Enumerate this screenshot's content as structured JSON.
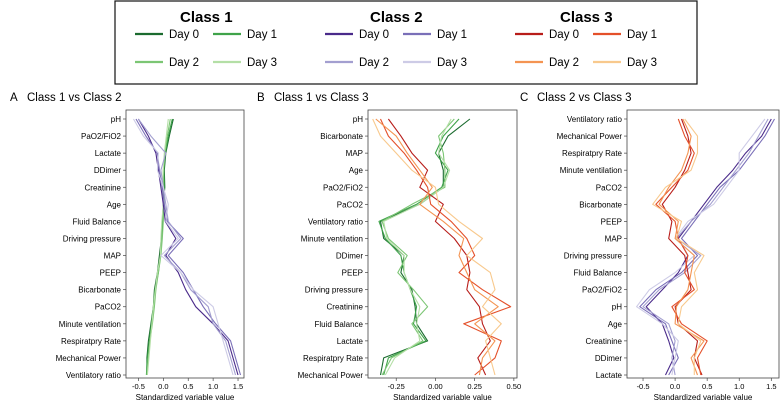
{
  "legend": {
    "groups": [
      {
        "title": "Class 1",
        "items": [
          {
            "label": "Day 0",
            "color": "#1b6b2f"
          },
          {
            "label": "Day 1",
            "color": "#3fa34a"
          },
          {
            "label": "Day 2",
            "color": "#7cc674"
          },
          {
            "label": "Day 3",
            "color": "#b4dfa6"
          }
        ]
      },
      {
        "title": "Class 2",
        "items": [
          {
            "label": "Day 0",
            "color": "#4a2a8a"
          },
          {
            "label": "Day 1",
            "color": "#7a6fb8"
          },
          {
            "label": "Day 2",
            "color": "#a39fd0"
          },
          {
            "label": "Day 3",
            "color": "#cdcbe6"
          }
        ]
      },
      {
        "title": "Class 3",
        "items": [
          {
            "label": "Day 0",
            "color": "#b81d1a"
          },
          {
            "label": "Day 1",
            "color": "#e4502a"
          },
          {
            "label": "Day 2",
            "color": "#f49452"
          },
          {
            "label": "Day 3",
            "color": "#f8c98d"
          }
        ]
      }
    ]
  },
  "chart_data": [
    {
      "type": "line",
      "panel": "A",
      "title": "Class 1 vs Class 2",
      "xlabel": "Standardized variable value",
      "xlim": [
        -0.75,
        1.62
      ],
      "xticks": [
        "-0.5",
        "0.0",
        "0.5",
        "1.0",
        "1.5"
      ],
      "xtick_values": [
        -0.5,
        0.0,
        0.5,
        1.0,
        1.5
      ],
      "categories": [
        "pH",
        "PaO2/FiO2",
        "Lactate",
        "DDimer",
        "Creatinine",
        "Age",
        "Fluid Balance",
        "Driving pressure",
        "MAP",
        "PEEP",
        "Bicarbonate",
        "PaCO2",
        "Minute ventilation",
        "Respiratpry Rate",
        "Mechanical Power",
        "Ventilatory ratio"
      ],
      "series": [
        {
          "name": "Class 1 Day 0",
          "color": "#1b6b2f",
          "values": [
            0.2,
            0.12,
            0.05,
            0.02,
            0.03,
            0.0,
            -0.02,
            -0.04,
            -0.08,
            -0.12,
            -0.18,
            -0.2,
            -0.25,
            -0.3,
            -0.33,
            -0.33
          ]
        },
        {
          "name": "Class 1 Day 1",
          "color": "#3fa34a",
          "values": [
            0.18,
            0.1,
            0.04,
            0.01,
            0.02,
            0.01,
            -0.01,
            -0.03,
            -0.06,
            -0.1,
            -0.17,
            -0.2,
            -0.24,
            -0.28,
            -0.32,
            -0.34
          ]
        },
        {
          "name": "Class 1 Day 2",
          "color": "#7cc674",
          "values": [
            0.14,
            0.08,
            0.03,
            0.0,
            0.0,
            0.02,
            0.0,
            -0.02,
            -0.05,
            -0.1,
            -0.15,
            -0.18,
            -0.22,
            -0.27,
            -0.3,
            -0.33
          ]
        },
        {
          "name": "Class 1 Day 3",
          "color": "#b4dfa6",
          "values": [
            0.1,
            0.06,
            0.02,
            0.0,
            -0.02,
            0.0,
            -0.03,
            -0.05,
            -0.06,
            -0.12,
            -0.16,
            -0.2,
            -0.23,
            -0.26,
            -0.29,
            -0.32
          ]
        },
        {
          "name": "Class 2 Day 0",
          "color": "#4a2a8a",
          "values": [
            -0.5,
            -0.3,
            -0.15,
            -0.1,
            -0.05,
            0.0,
            0.04,
            0.25,
            0.05,
            0.3,
            0.45,
            0.65,
            1.0,
            1.3,
            1.4,
            1.5
          ]
        },
        {
          "name": "Class 2 Day 1",
          "color": "#7a6fb8",
          "values": [
            -0.55,
            -0.35,
            -0.12,
            -0.08,
            -0.02,
            0.02,
            0.08,
            0.4,
            0.1,
            0.4,
            0.6,
            0.8,
            1.05,
            1.35,
            1.45,
            1.55
          ]
        },
        {
          "name": "Class 2 Day 2",
          "color": "#a39fd0",
          "values": [
            -0.5,
            -0.25,
            0.05,
            -0.05,
            0.0,
            0.05,
            0.1,
            0.35,
            0.02,
            0.35,
            0.55,
            0.9,
            1.0,
            1.25,
            1.35,
            1.45
          ]
        },
        {
          "name": "Class 2 Day 3",
          "color": "#cdcbe6",
          "values": [
            -0.6,
            -0.4,
            -0.1,
            -0.12,
            0.0,
            0.1,
            0.05,
            0.3,
            -0.05,
            0.35,
            0.6,
            1.0,
            1.1,
            1.2,
            1.3,
            1.4
          ]
        }
      ]
    },
    {
      "type": "line",
      "panel": "B",
      "title": "Class 1 vs Class 3",
      "xlabel": "Standardized variable value",
      "xlim": [
        -0.43,
        0.52
      ],
      "xticks": [
        "-0.25",
        "0.00",
        "0.25",
        "0.50"
      ],
      "xtick_values": [
        -0.25,
        0.0,
        0.25,
        0.5
      ],
      "categories": [
        "pH",
        "Bicarbonate",
        "MAP",
        "Age",
        "PaO2/FiO2",
        "PaCO2",
        "Ventilatory ratio",
        "Minute ventilation",
        "DDimer",
        "PEEP",
        "Driving pressure",
        "Creatinine",
        "Fluid Balance",
        "Lactate",
        "Respiratpry Rate",
        "Mechanical Power"
      ],
      "series": [
        {
          "name": "Class 1 Day 0",
          "color": "#1b6b2f",
          "values": [
            0.22,
            0.08,
            0.02,
            0.05,
            0.05,
            -0.1,
            -0.35,
            -0.33,
            -0.2,
            -0.22,
            -0.15,
            -0.13,
            -0.12,
            -0.05,
            -0.33,
            -0.35
          ]
        },
        {
          "name": "Class 1 Day 1",
          "color": "#3fa34a",
          "values": [
            0.15,
            0.05,
            0.0,
            0.08,
            0.04,
            -0.12,
            -0.36,
            -0.32,
            -0.22,
            -0.2,
            -0.16,
            -0.12,
            -0.14,
            -0.06,
            -0.3,
            -0.33
          ]
        },
        {
          "name": "Class 1 Day 2",
          "color": "#7cc674",
          "values": [
            0.12,
            0.02,
            0.05,
            0.06,
            0.06,
            -0.15,
            -0.34,
            -0.3,
            -0.18,
            -0.24,
            -0.14,
            -0.05,
            -0.15,
            -0.08,
            -0.28,
            -0.34
          ]
        },
        {
          "name": "Class 1 Day 3",
          "color": "#b4dfa6",
          "values": [
            0.1,
            0.04,
            0.02,
            0.09,
            0.05,
            -0.1,
            -0.33,
            -0.31,
            -0.2,
            -0.2,
            -0.16,
            -0.1,
            -0.12,
            -0.1,
            -0.26,
            -0.32
          ]
        },
        {
          "name": "Class 3 Day 0",
          "color": "#b81d1a",
          "values": [
            -0.3,
            -0.22,
            -0.15,
            -0.05,
            -0.1,
            0.05,
            0.0,
            0.12,
            0.2,
            0.22,
            0.2,
            0.28,
            0.3,
            0.35,
            0.27,
            0.32
          ]
        },
        {
          "name": "Class 3 Day 1",
          "color": "#e4502a",
          "values": [
            -0.35,
            -0.3,
            -0.2,
            -0.12,
            -0.05,
            -0.03,
            0.1,
            0.2,
            0.25,
            0.15,
            0.3,
            0.48,
            0.18,
            0.42,
            0.38,
            0.25
          ]
        },
        {
          "name": "Class 3 Day 2",
          "color": "#f49452",
          "values": [
            -0.38,
            -0.25,
            -0.18,
            -0.1,
            -0.02,
            -0.1,
            0.05,
            0.18,
            0.15,
            0.2,
            0.25,
            0.4,
            0.25,
            0.38,
            0.3,
            0.28
          ]
        },
        {
          "name": "Class 3 Day 3",
          "color": "#f8c98d",
          "values": [
            -0.4,
            -0.35,
            -0.25,
            -0.15,
            0.0,
            0.02,
            0.15,
            0.3,
            0.2,
            0.35,
            0.38,
            0.3,
            0.42,
            0.32,
            0.35,
            0.38
          ]
        }
      ]
    },
    {
      "type": "line",
      "panel": "C",
      "title": "Class 2 vs Class 3",
      "xlabel": "Standardized variable value",
      "xlim": [
        -0.75,
        1.62
      ],
      "xticks": [
        "-0.5",
        "0.0",
        "0.5",
        "1.0",
        "1.5"
      ],
      "xtick_values": [
        -0.5,
        0.0,
        0.5,
        1.0,
        1.5
      ],
      "categories": [
        "Ventilatory ratio",
        "Mechanical Power",
        "Respiratpry Rate",
        "Minute ventilation",
        "PaCO2",
        "Bicarbonate",
        "PEEP",
        "MAP",
        "Driving pressure",
        "Fluid Balance",
        "PaO2/FiO2",
        "pH",
        "Age",
        "Creatinine",
        "DDimer",
        "Lactate"
      ],
      "series": [
        {
          "name": "Class 2 Day 0",
          "color": "#4a2a8a",
          "values": [
            1.5,
            1.35,
            1.1,
            0.9,
            0.65,
            0.45,
            0.25,
            0.05,
            0.2,
            0.05,
            -0.2,
            -0.45,
            -0.2,
            -0.1,
            -0.02,
            -0.15
          ]
        },
        {
          "name": "Class 2 Day 1",
          "color": "#7a6fb8",
          "values": [
            1.55,
            1.4,
            1.2,
            1.0,
            0.7,
            0.5,
            0.3,
            0.1,
            0.35,
            0.1,
            -0.3,
            -0.55,
            -0.15,
            -0.05,
            0.05,
            -0.1
          ]
        },
        {
          "name": "Class 2 Day 2",
          "color": "#a39fd0",
          "values": [
            1.45,
            1.3,
            1.15,
            0.95,
            0.75,
            0.55,
            0.25,
            0.02,
            0.4,
            0.15,
            -0.25,
            -0.5,
            -0.1,
            0.0,
            -0.05,
            0.0
          ]
        },
        {
          "name": "Class 2 Day 3",
          "color": "#cdcbe6",
          "values": [
            1.4,
            1.2,
            1.0,
            1.0,
            0.8,
            0.6,
            0.2,
            0.0,
            0.3,
            0.0,
            -0.4,
            -0.6,
            -0.2,
            0.05,
            0.0,
            -0.05
          ]
        },
        {
          "name": "Class 3 Day 0",
          "color": "#b81d1a",
          "values": [
            0.1,
            0.2,
            0.25,
            0.15,
            0.0,
            -0.2,
            -0.05,
            -0.1,
            0.15,
            0.2,
            0.25,
            0.0,
            0.05,
            0.35,
            0.3,
            0.42
          ]
        },
        {
          "name": "Class 3 Day 1",
          "color": "#e4502a",
          "values": [
            0.05,
            0.15,
            0.3,
            0.2,
            -0.05,
            -0.3,
            0.0,
            0.05,
            0.2,
            0.15,
            0.3,
            -0.05,
            0.1,
            0.5,
            0.35,
            0.4
          ]
        },
        {
          "name": "Class 3 Day 2",
          "color": "#f49452",
          "values": [
            0.12,
            0.25,
            0.2,
            0.1,
            -0.1,
            -0.25,
            0.05,
            0.0,
            0.3,
            0.25,
            0.2,
            0.02,
            0.0,
            0.45,
            0.25,
            0.35
          ]
        },
        {
          "name": "Class 3 Day 3",
          "color": "#f8c98d",
          "values": [
            0.15,
            0.35,
            0.35,
            0.25,
            -0.15,
            -0.35,
            0.1,
            0.02,
            0.45,
            0.3,
            0.35,
            0.1,
            0.05,
            0.4,
            0.3,
            0.3
          ]
        }
      ]
    }
  ]
}
